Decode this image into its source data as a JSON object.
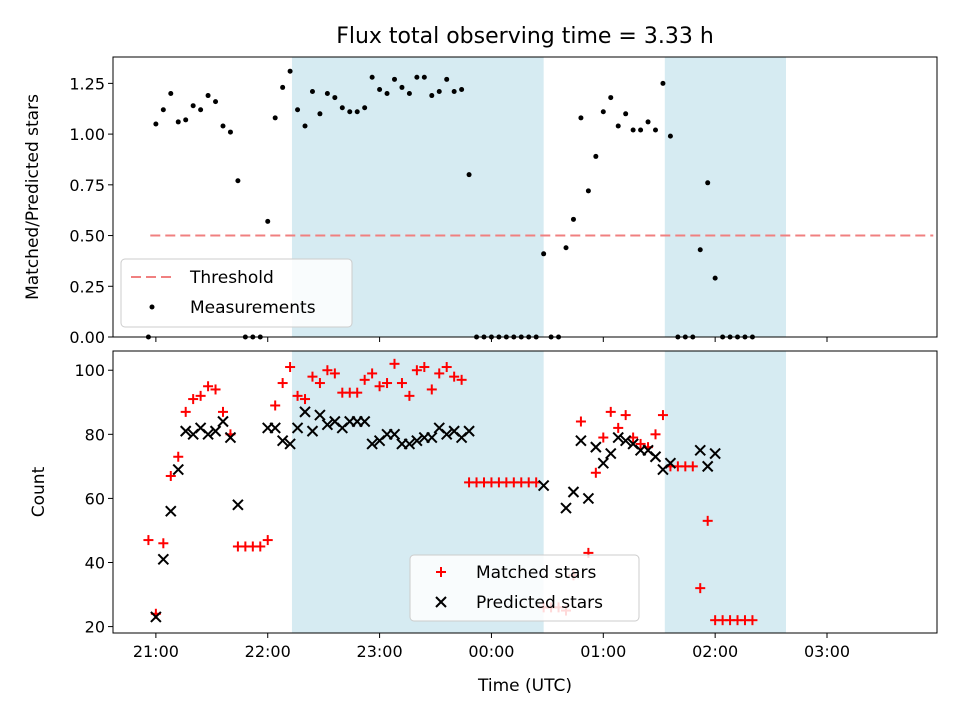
{
  "chart_data": [
    {
      "type": "scatter",
      "title": "Flux total observing time = 3.33 h",
      "xlabel": "",
      "ylabel": "Matched/Predicted stars",
      "xlim": [
        "20:37",
        "03:59"
      ],
      "ylim": [
        0,
        1.38
      ],
      "y_ticks": [
        "0.00",
        "0.25",
        "0.50",
        "0.75",
        "1.00",
        "1.25"
      ],
      "x_tick_labels": [],
      "legend_position": "lower-left",
      "shaded_intervals": [
        [
          "22:13",
          "00:28"
        ],
        [
          "01:33",
          "02:38"
        ]
      ],
      "threshold": {
        "name": "Threshold",
        "value": 0.5,
        "x_range": [
          "20:57",
          "03:57"
        ],
        "color": "#f08080"
      },
      "series": [
        {
          "name": "Measurements",
          "color": "#000000",
          "points": [
            [
              "20:56",
              0.0
            ],
            [
              "21:00",
              1.05
            ],
            [
              "21:04",
              1.12
            ],
            [
              "21:08",
              1.2
            ],
            [
              "21:12",
              1.06
            ],
            [
              "21:16",
              1.07
            ],
            [
              "21:20",
              1.14
            ],
            [
              "21:24",
              1.12
            ],
            [
              "21:28",
              1.19
            ],
            [
              "21:32",
              1.16
            ],
            [
              "21:36",
              1.04
            ],
            [
              "21:40",
              1.01
            ],
            [
              "21:44",
              0.77
            ],
            [
              "21:48",
              0.0
            ],
            [
              "21:52",
              0.0
            ],
            [
              "21:56",
              0.0
            ],
            [
              "22:00",
              0.57
            ],
            [
              "22:04",
              1.08
            ],
            [
              "22:08",
              1.23
            ],
            [
              "22:12",
              1.31
            ],
            [
              "22:16",
              1.12
            ],
            [
              "22:20",
              1.04
            ],
            [
              "22:24",
              1.21
            ],
            [
              "22:28",
              1.1
            ],
            [
              "22:32",
              1.2
            ],
            [
              "22:36",
              1.18
            ],
            [
              "22:40",
              1.13
            ],
            [
              "22:44",
              1.11
            ],
            [
              "22:48",
              1.11
            ],
            [
              "22:52",
              1.13
            ],
            [
              "22:56",
              1.28
            ],
            [
              "23:00",
              1.22
            ],
            [
              "23:04",
              1.2
            ],
            [
              "23:08",
              1.27
            ],
            [
              "23:12",
              1.23
            ],
            [
              "23:16",
              1.2
            ],
            [
              "23:20",
              1.28
            ],
            [
              "23:24",
              1.28
            ],
            [
              "23:28",
              1.19
            ],
            [
              "23:32",
              1.21
            ],
            [
              "23:36",
              1.27
            ],
            [
              "23:40",
              1.21
            ],
            [
              "23:44",
              1.22
            ],
            [
              "23:48",
              0.8
            ],
            [
              "23:52",
              0.0
            ],
            [
              "23:56",
              0.0
            ],
            [
              "00:00",
              0.0
            ],
            [
              "00:04",
              0.0
            ],
            [
              "00:08",
              0.0
            ],
            [
              "00:12",
              0.0
            ],
            [
              "00:16",
              0.0
            ],
            [
              "00:20",
              0.0
            ],
            [
              "00:24",
              0.0
            ],
            [
              "00:28",
              0.41
            ],
            [
              "00:32",
              0.0
            ],
            [
              "00:36",
              0.0
            ],
            [
              "00:40",
              0.44
            ],
            [
              "00:44",
              0.58
            ],
            [
              "00:48",
              1.08
            ],
            [
              "00:52",
              0.72
            ],
            [
              "00:56",
              0.89
            ],
            [
              "01:00",
              1.11
            ],
            [
              "01:04",
              1.18
            ],
            [
              "01:08",
              1.04
            ],
            [
              "01:12",
              1.1
            ],
            [
              "01:16",
              1.02
            ],
            [
              "01:20",
              1.02
            ],
            [
              "01:24",
              1.06
            ],
            [
              "01:28",
              1.02
            ],
            [
              "01:32",
              1.25
            ],
            [
              "01:36",
              0.99
            ],
            [
              "01:40",
              0.0
            ],
            [
              "01:44",
              0.0
            ],
            [
              "01:48",
              0.0
            ],
            [
              "01:52",
              0.43
            ],
            [
              "01:56",
              0.76
            ],
            [
              "02:00",
              0.29
            ],
            [
              "02:04",
              0.0
            ],
            [
              "02:08",
              0.0
            ],
            [
              "02:12",
              0.0
            ],
            [
              "02:16",
              0.0
            ],
            [
              "02:20",
              0.0
            ]
          ]
        }
      ]
    },
    {
      "type": "scatter",
      "title": "",
      "xlabel": "Time (UTC)",
      "ylabel": "Count",
      "xlim": [
        "20:37",
        "03:59"
      ],
      "ylim": [
        18,
        106
      ],
      "y_ticks": [
        "20",
        "40",
        "60",
        "80",
        "100"
      ],
      "x_tick_labels": [
        "21:00",
        "22:00",
        "23:00",
        "00:00",
        "01:00",
        "02:00",
        "03:00"
      ],
      "legend_position": "lower-center",
      "shaded_intervals": [
        [
          "22:13",
          "00:28"
        ],
        [
          "01:33",
          "02:38"
        ]
      ],
      "series": [
        {
          "name": "Matched stars",
          "marker": "plus",
          "color": "#ff0000",
          "points": [
            [
              "20:56",
              47
            ],
            [
              "21:00",
              24
            ],
            [
              "21:04",
              46
            ],
            [
              "21:08",
              67
            ],
            [
              "21:12",
              73
            ],
            [
              "21:16",
              87
            ],
            [
              "21:20",
              91
            ],
            [
              "21:24",
              92
            ],
            [
              "21:28",
              95
            ],
            [
              "21:32",
              94
            ],
            [
              "21:36",
              87
            ],
            [
              "21:40",
              80
            ],
            [
              "21:44",
              45
            ],
            [
              "21:48",
              45
            ],
            [
              "21:52",
              45
            ],
            [
              "21:56",
              45
            ],
            [
              "22:00",
              47
            ],
            [
              "22:04",
              89
            ],
            [
              "22:08",
              96
            ],
            [
              "22:12",
              101
            ],
            [
              "22:16",
              92
            ],
            [
              "22:20",
              91
            ],
            [
              "22:24",
              98
            ],
            [
              "22:28",
              96
            ],
            [
              "22:32",
              100
            ],
            [
              "22:36",
              99
            ],
            [
              "22:40",
              93
            ],
            [
              "22:44",
              93
            ],
            [
              "22:48",
              93
            ],
            [
              "22:52",
              97
            ],
            [
              "22:56",
              99
            ],
            [
              "23:00",
              95
            ],
            [
              "23:04",
              96
            ],
            [
              "23:08",
              102
            ],
            [
              "23:12",
              96
            ],
            [
              "23:16",
              92
            ],
            [
              "23:20",
              100
            ],
            [
              "23:24",
              101
            ],
            [
              "23:28",
              94
            ],
            [
              "23:32",
              99
            ],
            [
              "23:36",
              101
            ],
            [
              "23:40",
              98
            ],
            [
              "23:44",
              97
            ],
            [
              "23:48",
              65
            ],
            [
              "23:52",
              65
            ],
            [
              "23:56",
              65
            ],
            [
              "00:00",
              65
            ],
            [
              "00:04",
              65
            ],
            [
              "00:08",
              65
            ],
            [
              "00:12",
              65
            ],
            [
              "00:16",
              65
            ],
            [
              "00:20",
              65
            ],
            [
              "00:24",
              65
            ],
            [
              "00:28",
              26
            ],
            [
              "00:32",
              26
            ],
            [
              "00:36",
              26
            ],
            [
              "00:40",
              25
            ],
            [
              "00:44",
              36
            ],
            [
              "00:48",
              84
            ],
            [
              "00:52",
              43
            ],
            [
              "00:56",
              68
            ],
            [
              "01:00",
              79
            ],
            [
              "01:04",
              87
            ],
            [
              "01:08",
              82
            ],
            [
              "01:12",
              86
            ],
            [
              "01:16",
              79
            ],
            [
              "01:20",
              77
            ],
            [
              "01:24",
              76
            ],
            [
              "01:28",
              80
            ],
            [
              "01:32",
              86
            ],
            [
              "01:36",
              70
            ],
            [
              "01:40",
              70
            ],
            [
              "01:44",
              70
            ],
            [
              "01:48",
              70
            ],
            [
              "01:52",
              32
            ],
            [
              "01:56",
              53
            ],
            [
              "02:00",
              22
            ],
            [
              "02:04",
              22
            ],
            [
              "02:08",
              22
            ],
            [
              "02:12",
              22
            ],
            [
              "02:16",
              22
            ],
            [
              "02:20",
              22
            ]
          ]
        },
        {
          "name": "Predicted stars",
          "marker": "x",
          "color": "#000000",
          "points": [
            [
              "21:00",
              23
            ],
            [
              "21:04",
              41
            ],
            [
              "21:08",
              56
            ],
            [
              "21:12",
              69
            ],
            [
              "21:16",
              81
            ],
            [
              "21:20",
              80
            ],
            [
              "21:24",
              82
            ],
            [
              "21:28",
              80
            ],
            [
              "21:32",
              81
            ],
            [
              "21:36",
              84
            ],
            [
              "21:40",
              79
            ],
            [
              "21:44",
              58
            ],
            [
              "22:00",
              82
            ],
            [
              "22:04",
              82
            ],
            [
              "22:08",
              78
            ],
            [
              "22:12",
              77
            ],
            [
              "22:16",
              82
            ],
            [
              "22:20",
              87
            ],
            [
              "22:24",
              81
            ],
            [
              "22:28",
              86
            ],
            [
              "22:32",
              83
            ],
            [
              "22:36",
              84
            ],
            [
              "22:40",
              82
            ],
            [
              "22:44",
              84
            ],
            [
              "22:48",
              84
            ],
            [
              "22:52",
              84
            ],
            [
              "22:56",
              77
            ],
            [
              "23:00",
              78
            ],
            [
              "23:04",
              80
            ],
            [
              "23:08",
              80
            ],
            [
              "23:12",
              77
            ],
            [
              "23:16",
              77
            ],
            [
              "23:20",
              78
            ],
            [
              "23:24",
              79
            ],
            [
              "23:28",
              79
            ],
            [
              "23:32",
              82
            ],
            [
              "23:36",
              80
            ],
            [
              "23:40",
              81
            ],
            [
              "23:44",
              79
            ],
            [
              "23:48",
              81
            ],
            [
              "00:28",
              64
            ],
            [
              "00:40",
              57
            ],
            [
              "00:44",
              62
            ],
            [
              "00:48",
              78
            ],
            [
              "00:52",
              60
            ],
            [
              "00:56",
              76
            ],
            [
              "01:00",
              71
            ],
            [
              "01:04",
              74
            ],
            [
              "01:08",
              79
            ],
            [
              "01:12",
              78
            ],
            [
              "01:16",
              77
            ],
            [
              "01:20",
              75
            ],
            [
              "01:24",
              75
            ],
            [
              "01:28",
              73
            ],
            [
              "01:32",
              69
            ],
            [
              "01:36",
              71
            ],
            [
              "01:52",
              75
            ],
            [
              "01:56",
              70
            ],
            [
              "02:00",
              74
            ]
          ]
        }
      ]
    }
  ]
}
